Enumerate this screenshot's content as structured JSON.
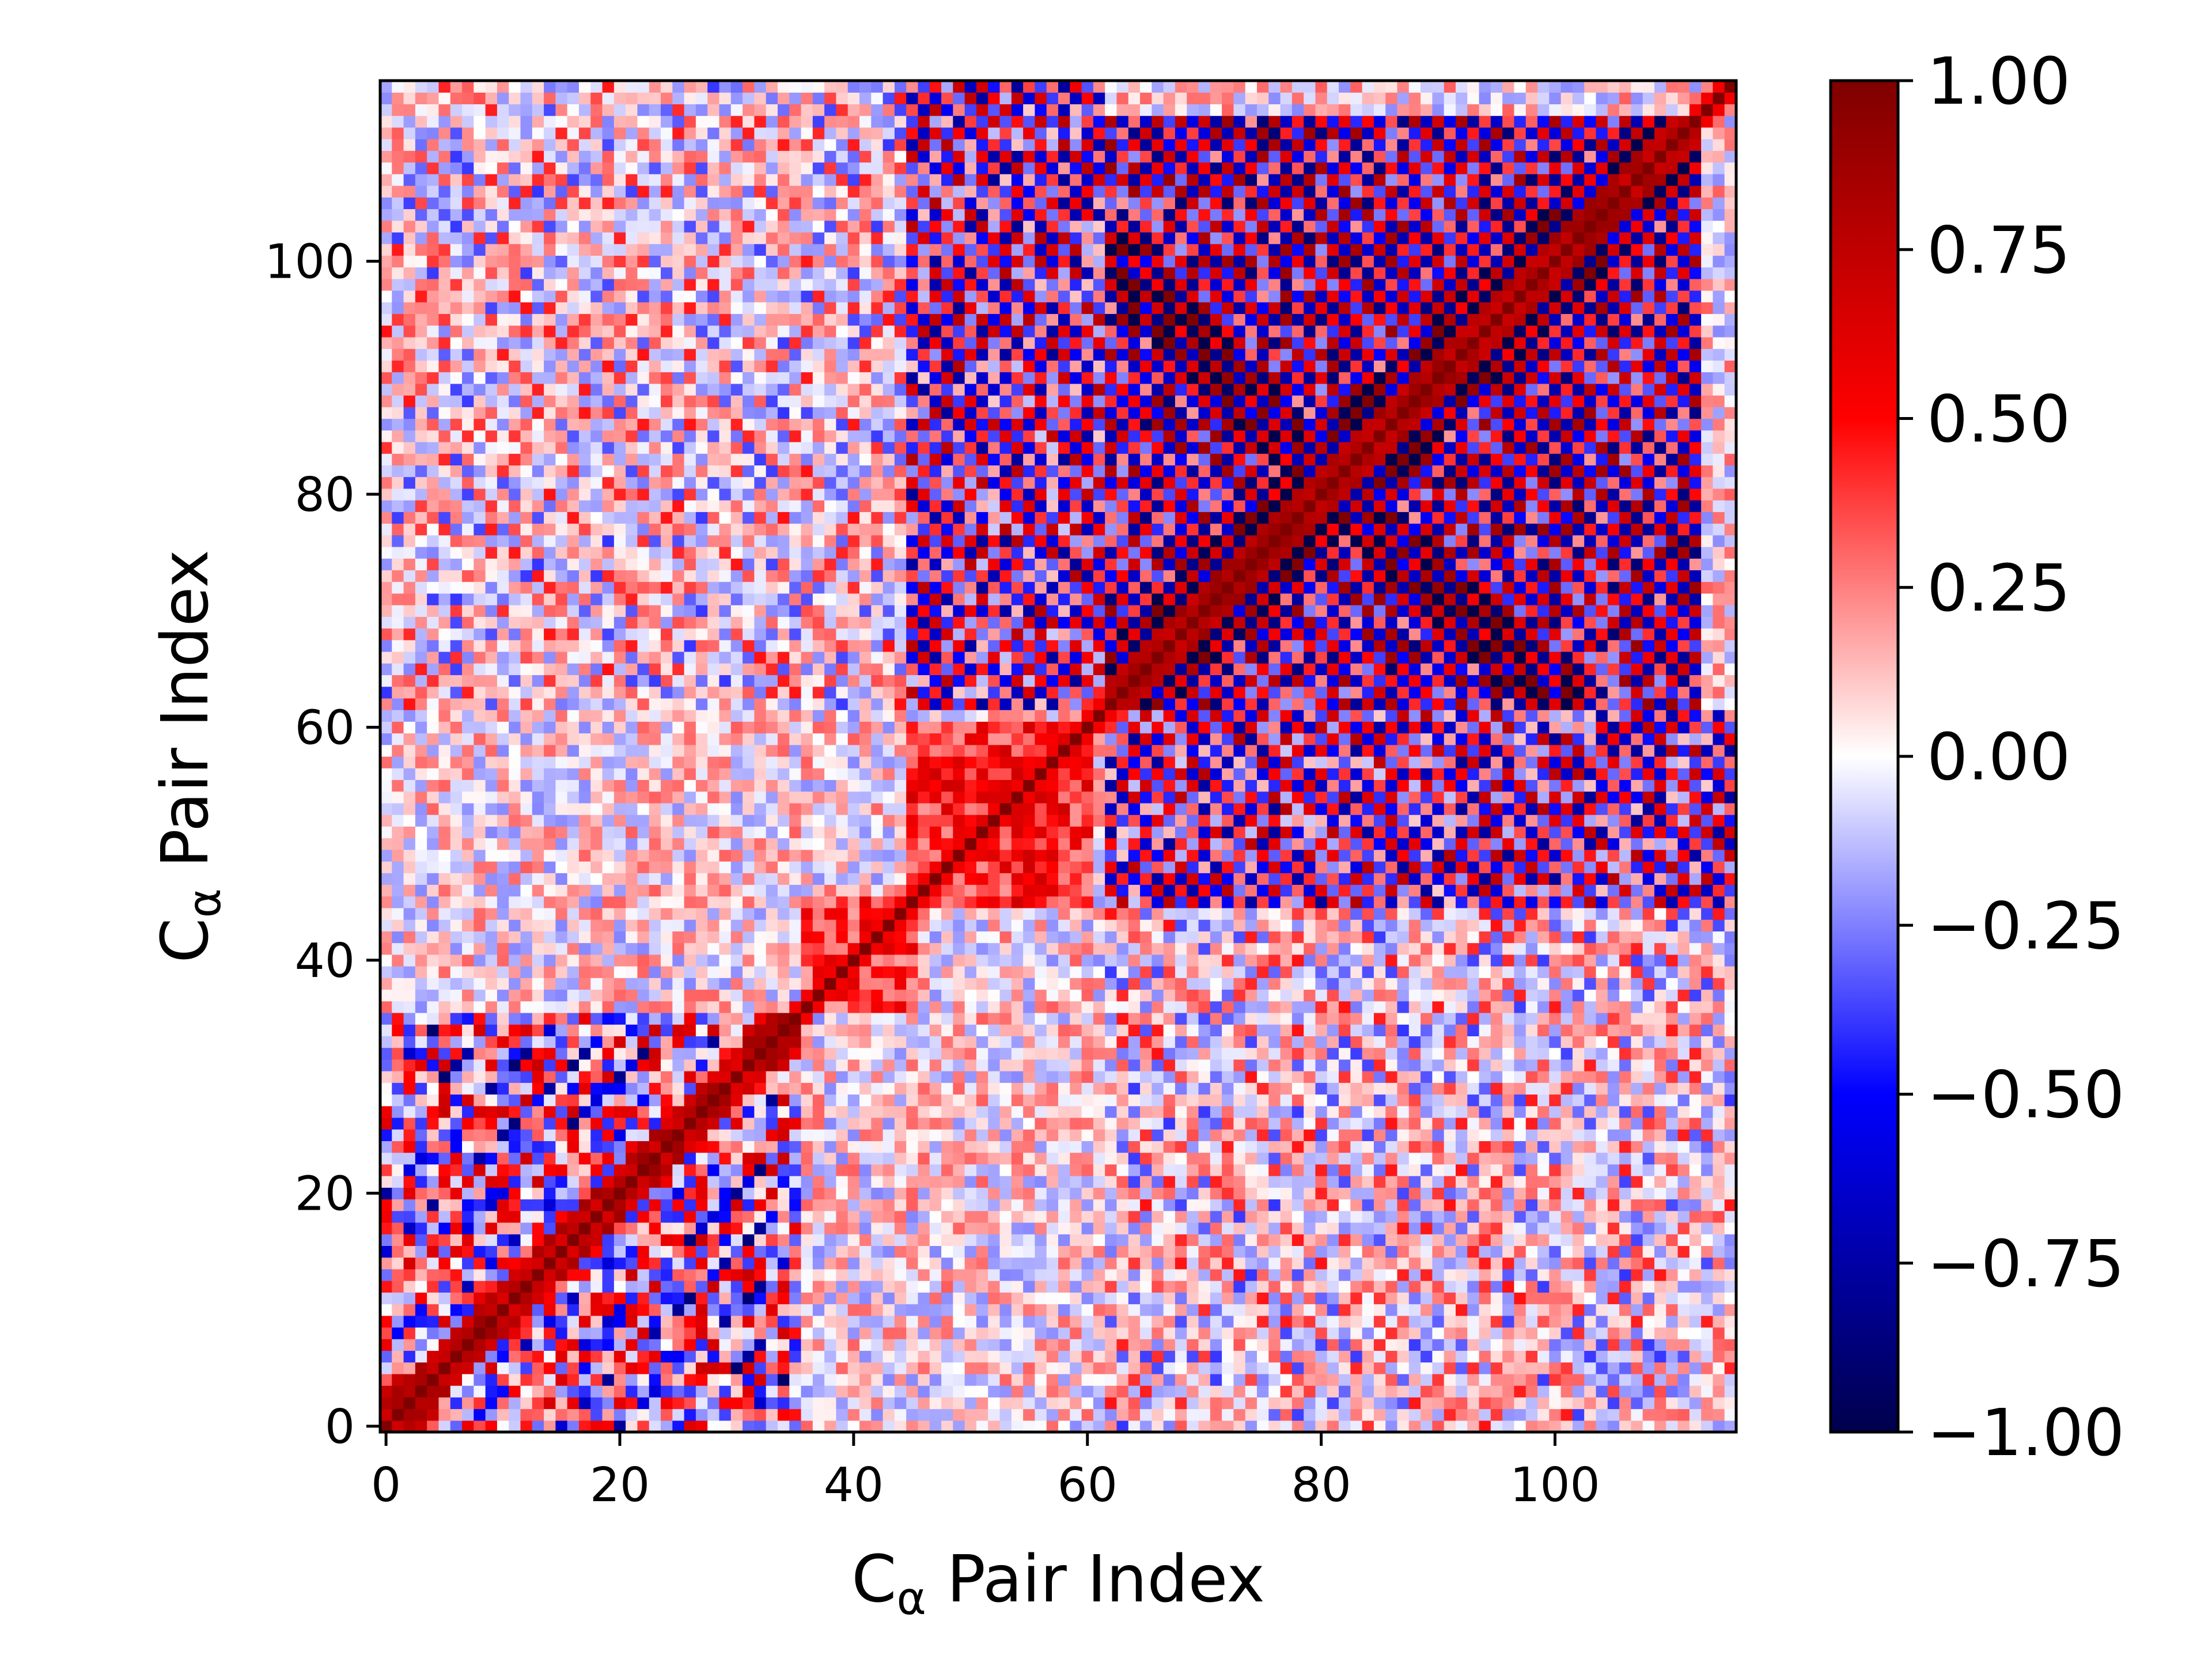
{
  "chart_data": {
    "type": "heatmap",
    "title": "",
    "xlabel": {
      "base": "C",
      "sub": "α",
      "rest": " Pair Index"
    },
    "ylabel": {
      "base": "C",
      "sub": "α",
      "rest": " Pair Index"
    },
    "x_range": [
      0,
      115
    ],
    "y_range": [
      0,
      115
    ],
    "grid_size": 116,
    "x_ticks": [
      0,
      20,
      40,
      60,
      80,
      100
    ],
    "y_ticks": [
      0,
      20,
      40,
      60,
      80,
      100
    ],
    "x_tick_labels": [
      "0",
      "20",
      "40",
      "60",
      "80",
      "100"
    ],
    "y_tick_labels": [
      "0",
      "20",
      "40",
      "60",
      "80",
      "100"
    ],
    "value_range": [
      -1.0,
      1.0
    ],
    "diagonal_value": 1.0,
    "colormap": "seismic",
    "colormap_stops": [
      "#00004c",
      "#0000ff",
      "#ffffff",
      "#ff0000",
      "#7f0000"
    ],
    "colorbar": {
      "ticks": [
        1.0,
        0.75,
        0.5,
        0.25,
        0.0,
        -0.25,
        -0.5,
        -0.75,
        -1.0
      ],
      "tick_labels": [
        "1.00",
        "0.75",
        "0.50",
        "0.25",
        "0.00",
        "−0.25",
        "−0.50",
        "−0.75",
        "−1.00"
      ]
    },
    "blocks": [
      {
        "name": "block-a",
        "range": [
          0,
          35
        ],
        "pattern": "mixed",
        "strength": 0.62
      },
      {
        "name": "block-b",
        "range": [
          36,
          45
        ],
        "pattern": "positive",
        "strength": 0.55
      },
      {
        "name": "block-c",
        "range": [
          45,
          60
        ],
        "pattern": "positive",
        "strength": 0.7
      },
      {
        "name": "block-d",
        "range": [
          62,
          112
        ],
        "pattern": "checker-x",
        "strength": 0.9
      }
    ]
  }
}
